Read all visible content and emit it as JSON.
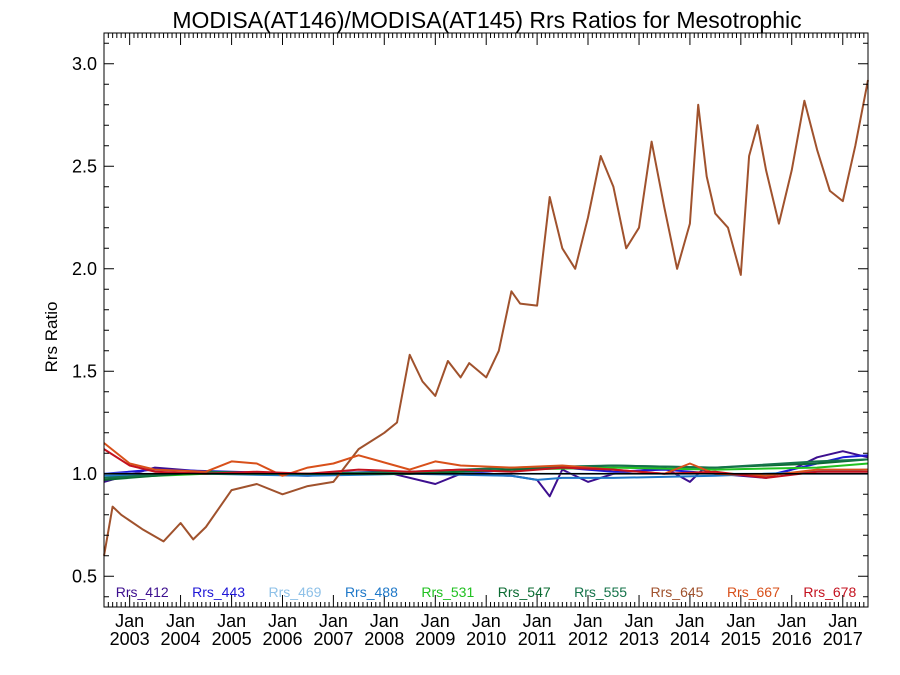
{
  "chart_data": {
    "type": "line",
    "title": "MODISA(AT146)/MODISA(AT145)  Rrs Ratios for Mesotrophic",
    "xlabel": "",
    "ylabel": "Rrs Ratio",
    "xlim": [
      "2002-07-01",
      "2017-07-01"
    ],
    "ylim": [
      0.35,
      3.15
    ],
    "yticks": [
      {
        "value": 0.5,
        "label": "0.5"
      },
      {
        "value": 1.0,
        "label": "1.0"
      },
      {
        "value": 1.5,
        "label": "1.5"
      },
      {
        "value": 2.0,
        "label": "2.0"
      },
      {
        "value": 2.5,
        "label": "2.5"
      },
      {
        "value": 3.0,
        "label": "3.0"
      }
    ],
    "xticks": [
      {
        "date": "2003-01-01",
        "month": "Jan",
        "year": "2003"
      },
      {
        "date": "2004-01-01",
        "month": "Jan",
        "year": "2004"
      },
      {
        "date": "2005-01-01",
        "month": "Jan",
        "year": "2005"
      },
      {
        "date": "2006-01-01",
        "month": "Jan",
        "year": "2006"
      },
      {
        "date": "2007-01-01",
        "month": "Jan",
        "year": "2007"
      },
      {
        "date": "2008-01-01",
        "month": "Jan",
        "year": "2008"
      },
      {
        "date": "2009-01-01",
        "month": "Jan",
        "year": "2009"
      },
      {
        "date": "2010-01-01",
        "month": "Jan",
        "year": "2010"
      },
      {
        "date": "2011-01-01",
        "month": "Jan",
        "year": "2011"
      },
      {
        "date": "2012-01-01",
        "month": "Jan",
        "year": "2012"
      },
      {
        "date": "2013-01-01",
        "month": "Jan",
        "year": "2013"
      },
      {
        "date": "2014-01-01",
        "month": "Jan",
        "year": "2014"
      },
      {
        "date": "2015-01-01",
        "month": "Jan",
        "year": "2015"
      },
      {
        "date": "2016-01-01",
        "month": "Jan",
        "year": "2016"
      },
      {
        "date": "2017-01-01",
        "month": "Jan",
        "year": "2017"
      }
    ],
    "reference_line": 1.0,
    "legend_position": "bottom",
    "series": [
      {
        "name": "Rrs_412",
        "color": "#3d0f8f",
        "x": [
          "2002-07-01",
          "2003-07-01",
          "2005-01-01",
          "2006-07-01",
          "2008-01-01",
          "2009-01-01",
          "2009-07-01",
          "2010-07-01",
          "2011-01-01",
          "2011-04-01",
          "2011-07-01",
          "2012-01-01",
          "2012-07-01",
          "2013-07-01",
          "2014-01-01",
          "2014-04-01",
          "2014-07-01",
          "2015-01-01",
          "2015-07-01",
          "2016-01-01",
          "2016-07-01",
          "2017-01-01",
          "2017-07-01"
        ],
        "y": [
          0.96,
          1.03,
          1.0,
          0.99,
          1.01,
          0.95,
          1.0,
          0.99,
          0.97,
          0.89,
          1.02,
          0.96,
          1.0,
          1.03,
          0.96,
          1.02,
          1.0,
          0.99,
          0.98,
          1.02,
          1.08,
          1.11,
          1.08
        ]
      },
      {
        "name": "Rrs_443",
        "color": "#1f17d6",
        "x": [
          "2002-07-01",
          "2003-07-01",
          "2005-01-01",
          "2006-07-01",
          "2008-01-01",
          "2009-07-01",
          "2010-07-01",
          "2011-07-01",
          "2012-07-01",
          "2013-07-01",
          "2014-07-01",
          "2015-07-01",
          "2016-07-01",
          "2017-01-01",
          "2017-07-01"
        ],
        "y": [
          1.0,
          1.02,
          1.01,
          1.0,
          1.01,
          1.0,
          1.02,
          1.03,
          1.01,
          1.02,
          1.0,
          0.99,
          1.05,
          1.08,
          1.09
        ]
      },
      {
        "name": "Rrs_469",
        "color": "#8ec1e8",
        "x": [
          "2002-07-01",
          "2004-07-01",
          "2006-07-01",
          "2008-07-01",
          "2010-07-01",
          "2012-07-01",
          "2014-07-01",
          "2016-07-01",
          "2017-07-01"
        ],
        "y": [
          1.0,
          1.0,
          1.0,
          1.0,
          1.0,
          1.0,
          1.0,
          1.0,
          1.0
        ]
      },
      {
        "name": "Rrs_488",
        "color": "#1f78c8",
        "x": [
          "2002-07-01",
          "2004-07-01",
          "2006-07-01",
          "2008-07-01",
          "2010-07-01",
          "2011-01-01",
          "2011-07-01",
          "2012-07-01",
          "2014-07-01",
          "2016-07-01",
          "2017-07-01"
        ],
        "y": [
          0.99,
          1.0,
          0.99,
          1.0,
          0.99,
          0.97,
          0.98,
          0.98,
          0.99,
          1.01,
          1.02
        ]
      },
      {
        "name": "Rrs_531",
        "color": "#21c121",
        "x": [
          "2002-07-01",
          "2004-07-01",
          "2006-07-01",
          "2008-07-01",
          "2010-07-01",
          "2012-07-01",
          "2014-07-01",
          "2016-07-01",
          "2017-07-01"
        ],
        "y": [
          0.98,
          1.0,
          1.0,
          1.0,
          1.02,
          1.03,
          1.02,
          1.03,
          1.05
        ]
      },
      {
        "name": "Rrs_547",
        "color": "#0b6b32",
        "x": [
          "2002-07-01",
          "2004-07-01",
          "2006-07-01",
          "2008-07-01",
          "2010-07-01",
          "2012-07-01",
          "2014-07-01",
          "2016-07-01",
          "2017-07-01"
        ],
        "y": [
          0.97,
          1.01,
          1.0,
          1.0,
          1.02,
          1.04,
          1.03,
          1.05,
          1.07
        ]
      },
      {
        "name": "Rrs_555",
        "color": "#15734a",
        "x": [
          "2002-07-01",
          "2004-07-01",
          "2006-07-01",
          "2008-07-01",
          "2010-07-01",
          "2012-07-01",
          "2014-07-01",
          "2016-07-01",
          "2017-07-01"
        ],
        "y": [
          0.98,
          1.01,
          1.0,
          1.01,
          1.03,
          1.04,
          1.03,
          1.06,
          1.07
        ]
      },
      {
        "name": "Rrs_645",
        "color": "#a0522d",
        "x": [
          "2002-07-01",
          "2002-09-01",
          "2002-11-01",
          "2003-04-01",
          "2003-09-01",
          "2004-01-01",
          "2004-04-01",
          "2004-07-01",
          "2005-01-01",
          "2005-07-01",
          "2006-01-01",
          "2006-07-01",
          "2007-01-01",
          "2007-07-01",
          "2008-01-01",
          "2008-04-01",
          "2008-07-01",
          "2008-10-01",
          "2009-01-01",
          "2009-04-01",
          "2009-07-01",
          "2009-09-01",
          "2010-01-01",
          "2010-04-01",
          "2010-07-01",
          "2010-09-01",
          "2011-01-01",
          "2011-04-01",
          "2011-07-01",
          "2011-10-01",
          "2012-01-01",
          "2012-04-01",
          "2012-07-01",
          "2012-10-01",
          "2013-01-01",
          "2013-04-01",
          "2013-07-01",
          "2013-10-01",
          "2014-01-01",
          "2014-03-01",
          "2014-05-01",
          "2014-07-01",
          "2014-10-01",
          "2015-01-01",
          "2015-03-01",
          "2015-05-01",
          "2015-07-01",
          "2015-10-01",
          "2016-01-01",
          "2016-04-01",
          "2016-07-01",
          "2016-10-01",
          "2017-01-01",
          "2017-04-01",
          "2017-07-01"
        ],
        "y": [
          0.6,
          0.84,
          0.8,
          0.73,
          0.67,
          0.76,
          0.68,
          0.74,
          0.92,
          0.95,
          0.9,
          0.94,
          0.96,
          1.12,
          1.2,
          1.25,
          1.58,
          1.45,
          1.38,
          1.55,
          1.47,
          1.54,
          1.47,
          1.6,
          1.89,
          1.83,
          1.82,
          2.35,
          2.1,
          2.0,
          2.25,
          2.55,
          2.4,
          2.1,
          2.2,
          2.62,
          2.3,
          2.0,
          2.22,
          2.8,
          2.45,
          2.27,
          2.2,
          1.97,
          2.55,
          2.7,
          2.48,
          2.22,
          2.48,
          2.82,
          2.58,
          2.38,
          2.33,
          2.6,
          2.92
        ]
      },
      {
        "name": "Rrs_667",
        "color": "#d8501a",
        "x": [
          "2002-07-01",
          "2003-01-01",
          "2003-07-01",
          "2004-07-01",
          "2005-01-01",
          "2005-07-01",
          "2006-01-01",
          "2006-07-01",
          "2007-01-01",
          "2007-07-01",
          "2008-07-01",
          "2009-01-01",
          "2009-07-01",
          "2010-07-01",
          "2011-07-01",
          "2012-07-01",
          "2013-07-01",
          "2014-01-01",
          "2014-07-01",
          "2015-07-01",
          "2016-07-01",
          "2017-07-01"
        ],
        "y": [
          1.15,
          1.05,
          1.02,
          1.01,
          1.06,
          1.05,
          0.99,
          1.03,
          1.05,
          1.09,
          1.02,
          1.06,
          1.04,
          1.03,
          1.04,
          1.02,
          1.0,
          1.05,
          1.0,
          0.99,
          1.02,
          1.02
        ]
      },
      {
        "name": "Rrs_678",
        "color": "#c4121f",
        "x": [
          "2002-07-01",
          "2003-01-01",
          "2003-07-01",
          "2004-07-01",
          "2005-07-01",
          "2006-07-01",
          "2007-07-01",
          "2008-07-01",
          "2009-07-01",
          "2010-07-01",
          "2011-07-01",
          "2012-07-01",
          "2013-07-01",
          "2014-07-01",
          "2015-07-01",
          "2016-07-01",
          "2017-07-01"
        ],
        "y": [
          1.12,
          1.04,
          1.01,
          1.0,
          1.01,
          1.0,
          1.02,
          1.01,
          1.02,
          1.01,
          1.03,
          1.02,
          1.0,
          1.01,
          0.98,
          1.01,
          1.01
        ]
      }
    ]
  }
}
